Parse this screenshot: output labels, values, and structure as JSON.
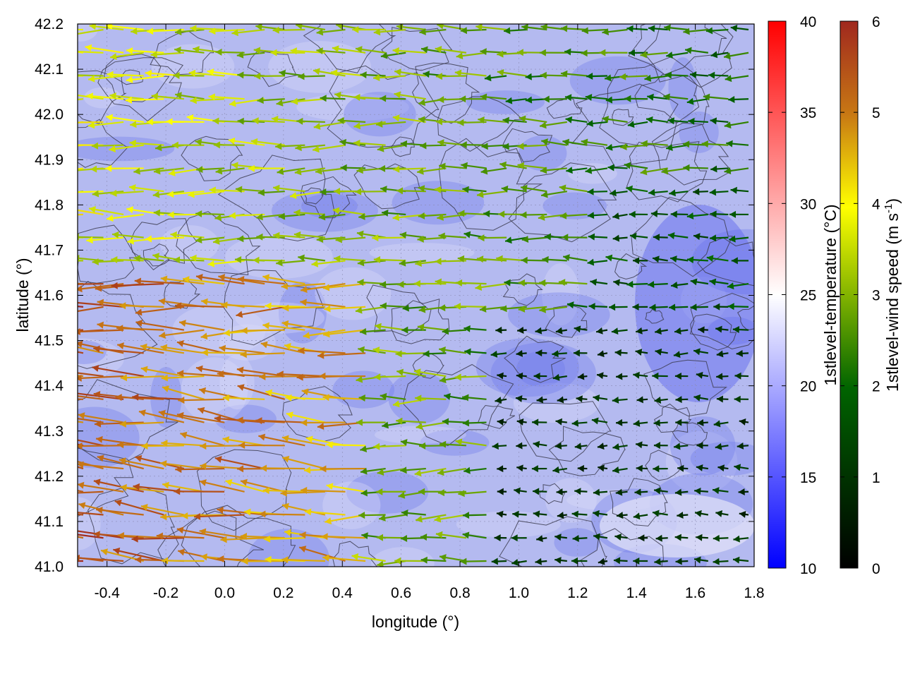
{
  "chart_data": {
    "type": "heatmap",
    "title": "",
    "xlabel": "longitude (°)",
    "ylabel": "latitude (°)",
    "xlim": [
      -0.5,
      1.8
    ],
    "ylim": [
      41.0,
      42.2
    ],
    "xticks": [
      "-0.4",
      "-0.2",
      "0.0",
      "0.2",
      "0.4",
      "0.6",
      "0.8",
      "1.0",
      "1.2",
      "1.4",
      "1.6",
      "1.8"
    ],
    "yticks": [
      "41.0",
      "41.1",
      "41.2",
      "41.3",
      "41.4",
      "41.5",
      "41.6",
      "41.7",
      "41.8",
      "41.9",
      "42.0",
      "42.1",
      "42.2"
    ],
    "grid": true,
    "overlays": [
      "temperature field",
      "terrain contours",
      "wind vectors"
    ],
    "colorbars": [
      {
        "label": "1stlevel-temperature (°C)",
        "range": [
          10,
          40
        ],
        "ticks": [
          "10",
          "15",
          "20",
          "25",
          "30",
          "35",
          "40"
        ],
        "colors": [
          "#0000ff",
          "#ffffff",
          "#ff0000"
        ]
      },
      {
        "label_main": "1stlevel-wind speed (m s",
        "label_sup": "-1",
        "label_end": ")",
        "range": [
          0,
          6
        ],
        "ticks": [
          "0",
          "1",
          "2",
          "3",
          "4",
          "5",
          "6"
        ],
        "colors": [
          "#000000",
          "#006400",
          "#ffff00",
          "#c87814",
          "#a0281e"
        ]
      }
    ]
  }
}
